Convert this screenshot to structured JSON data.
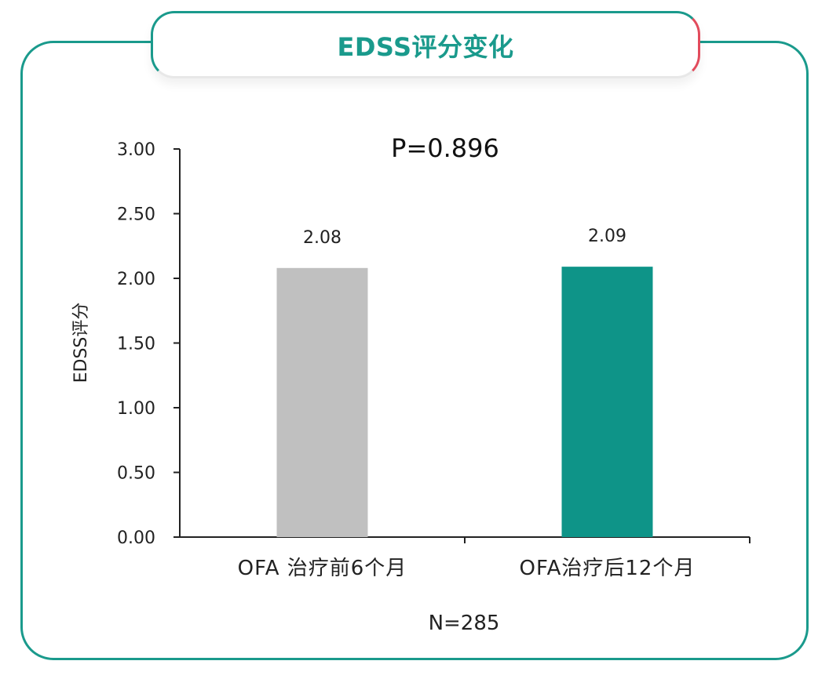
{
  "page": {
    "title": "EDSS评分变化"
  },
  "chart_data": {
    "type": "bar",
    "title": "",
    "annotation": "P=0.896",
    "ylabel": "EDSS评分",
    "xlabel": "",
    "ylim": [
      0,
      3
    ],
    "yticks": [
      "0.00",
      "0.50",
      "1.00",
      "1.50",
      "2.00",
      "2.50",
      "3.00"
    ],
    "categories": [
      "OFA 治疗前6个月",
      "OFA治疗后12个月"
    ],
    "values": [
      2.08,
      2.09
    ],
    "data_labels": [
      "2.08",
      "2.09"
    ],
    "bar_colors": [
      "#c0c0c0",
      "#0e9488"
    ],
    "footnote": "N=285",
    "grid": false,
    "legend": "none"
  }
}
